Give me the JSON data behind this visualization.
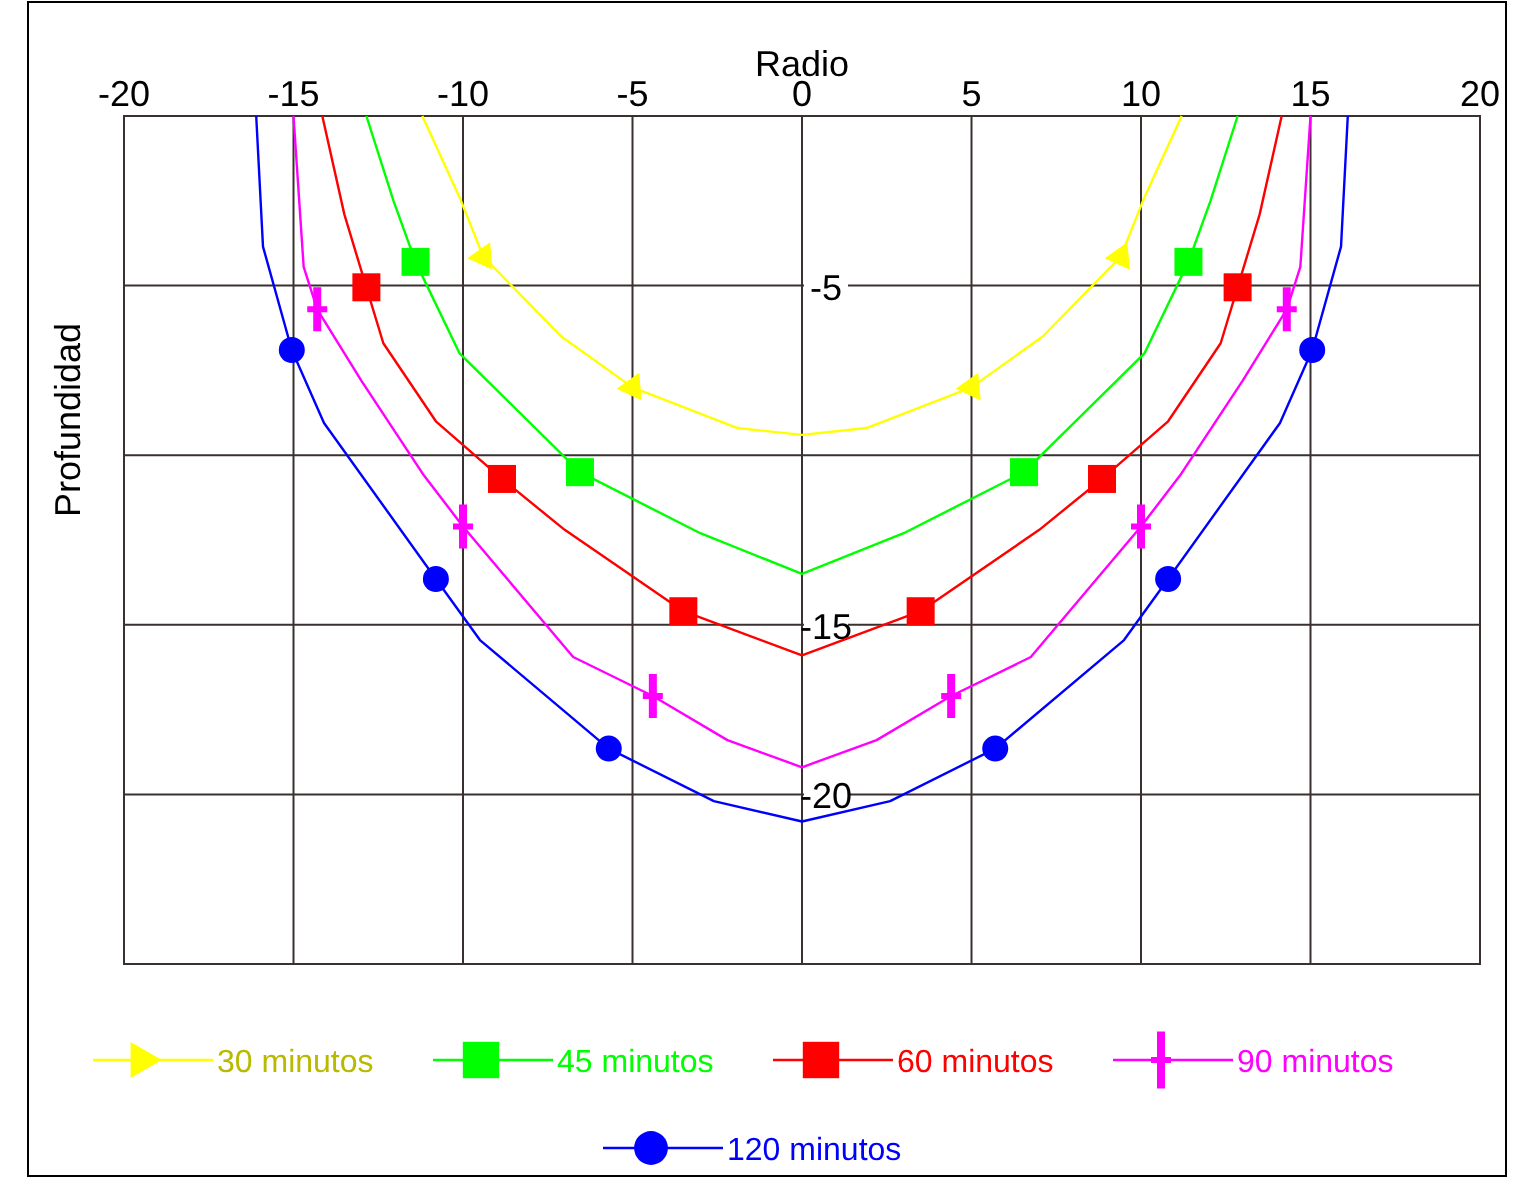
{
  "chart_data": {
    "type": "line",
    "xlabel": "Radio",
    "ylabel": "Profundidad",
    "xlim": [
      -20,
      20
    ],
    "ylim": [
      -25,
      0
    ],
    "xticks": [
      -20,
      -15,
      -10,
      -5,
      0,
      5,
      10,
      15,
      20
    ],
    "yticks": [
      {
        "value": 0,
        "label": null
      },
      -5,
      {
        "value": -10,
        "label": null
      },
      -15,
      -20,
      {
        "value": -25,
        "label": null
      }
    ],
    "grid": true,
    "legend": "bottom",
    "line_style": "solid",
    "marker": "none",
    "series": [
      {
        "color": "#ffff00",
        "x": [
          -11.2,
          -10.1,
          -9.4,
          -7.1,
          -5,
          -1.9,
          0,
          1.9,
          5,
          7.1,
          9.4,
          10.1,
          11.2
        ],
        "values": [
          0,
          -2.4,
          -4.15,
          -6.5,
          -8,
          -9.2,
          -9.4,
          -9.2,
          -8,
          -6.5,
          -4.15,
          -2.4,
          0
        ]
      },
      {
        "type": "scatter",
        "name": "30 minutos",
        "color": "#ffff00",
        "marker": "triangle",
        "x": [
          -9.4,
          -5,
          5,
          9.4
        ],
        "values": [
          -4.15,
          -8,
          -8,
          -4.15
        ]
      },
      {
        "color": "#00ff00",
        "x": [
          -12.85,
          -12.05,
          -11.4,
          -10.1,
          -6.55,
          -3,
          0,
          3,
          6.55,
          10.1,
          11.4,
          12.05,
          12.85
        ],
        "values": [
          0,
          -2.5,
          -4.3,
          -7,
          -10.5,
          -12.3,
          -13.5,
          -12.3,
          -10.5,
          -7,
          -4.3,
          -2.5,
          0
        ]
      },
      {
        "type": "scatter",
        "name": "45 minutos",
        "color": "#00ff00",
        "marker": "square",
        "x": [
          -11.4,
          -6.55,
          6.55,
          11.4
        ],
        "values": [
          -4.3,
          -10.5,
          -10.5,
          -4.3
        ]
      },
      {
        "color": "#ff0000",
        "x": [
          -14.15,
          -13.5,
          -12.85,
          -12.35,
          -10.8,
          -8.85,
          -7,
          -3.5,
          0,
          3.5,
          7,
          8.85,
          10.8,
          12.35,
          12.85,
          13.5,
          14.15
        ],
        "values": [
          0,
          -2.9,
          -5.05,
          -6.7,
          -9,
          -10.7,
          -12.2,
          -14.6,
          -15.9,
          -14.6,
          -12.2,
          -10.7,
          -9,
          -6.7,
          -5.05,
          -2.9,
          0
        ]
      },
      {
        "type": "scatter",
        "name": "60 minutos",
        "color": "#ff0000",
        "marker": "square",
        "x": [
          -12.85,
          -8.85,
          -3.5,
          3.5,
          8.85,
          12.85
        ],
        "values": [
          -5.05,
          -10.7,
          -14.6,
          -14.6,
          -10.7,
          -5.05
        ]
      },
      {
        "color": "#ff00ff",
        "x": [
          -15,
          -14.7,
          -14.3,
          -13,
          -11.15,
          -10,
          -6.75,
          -4.4,
          -2.2,
          0,
          2.2,
          4.4,
          6.75,
          10,
          11.15,
          13,
          14.3,
          14.7,
          15
        ],
        "values": [
          0,
          -4.45,
          -5.7,
          -7.8,
          -10.6,
          -12.1,
          -15.95,
          -17.1,
          -18.4,
          -19.2,
          -18.4,
          -17.1,
          -15.95,
          -12.1,
          -10.6,
          -7.8,
          -5.7,
          -4.45,
          0
        ]
      },
      {
        "type": "scatter",
        "name": "90 minutos",
        "color": "#ff00ff",
        "marker": "cross",
        "x": [
          -14.3,
          -10,
          -4.4,
          4.4,
          10,
          14.3
        ],
        "values": [
          -5.7,
          -12.1,
          -17.1,
          -17.1,
          -12.1,
          -5.7
        ]
      },
      {
        "color": "#0000ff",
        "x": [
          -16.1,
          -15.9,
          -15.05,
          -14.1,
          -10.8,
          -9.5,
          -5.7,
          -2.6,
          0,
          2.6,
          5.7,
          9.5,
          10.8,
          14.1,
          15.05,
          15.9,
          16.1
        ],
        "values": [
          0,
          -3.85,
          -6.9,
          -9.05,
          -13.65,
          -15.45,
          -18.65,
          -20.2,
          -20.8,
          -20.2,
          -18.65,
          -15.45,
          -13.65,
          -9.05,
          -6.9,
          -3.85,
          0
        ]
      },
      {
        "type": "scatter",
        "name": "120 minutos",
        "color": "#0000ff",
        "marker": "circle",
        "x": [
          -15.05,
          -10.8,
          -5.7,
          5.7,
          10.8,
          15.05
        ],
        "values": [
          -6.9,
          -13.65,
          -18.65,
          -18.65,
          -13.65,
          -6.9
        ]
      }
    ]
  }
}
